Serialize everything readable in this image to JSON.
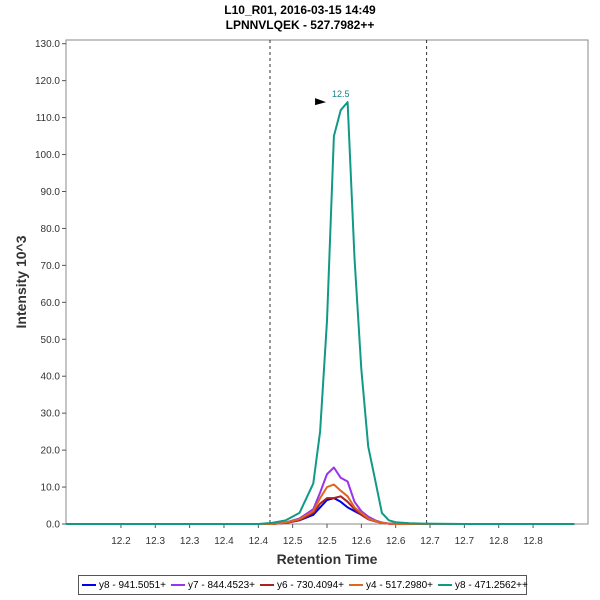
{
  "chart_data": {
    "type": "line",
    "title": "L10_R01, 2016-03-15 14:49",
    "subtitle": "LPNNVLQEK - 527.7982++",
    "xlabel": "Retention Time",
    "ylabel": "Intensity 10^3",
    "xlim": [
      12.12,
      12.88
    ],
    "ylim": [
      0,
      131
    ],
    "xticks": [
      "12.2",
      "12.3",
      "12.3",
      "12.4",
      "12.4",
      "12.5",
      "12.5",
      "12.6",
      "12.6",
      "12.7",
      "12.7",
      "12.8",
      "12.8"
    ],
    "xtick_values": [
      12.2,
      12.25,
      12.3,
      12.35,
      12.4,
      12.45,
      12.5,
      12.55,
      12.6,
      12.65,
      12.7,
      12.75,
      12.8
    ],
    "yticks": [
      "0.0",
      "10.0",
      "20.0",
      "30.0",
      "40.0",
      "50.0",
      "60.0",
      "70.0",
      "80.0",
      "90.0",
      "100.0",
      "110.0",
      "120.0",
      "130.0"
    ],
    "ytick_values": [
      0,
      10,
      20,
      30,
      40,
      50,
      60,
      70,
      80,
      90,
      100,
      110,
      120,
      130
    ],
    "boundaries": [
      12.417,
      12.645
    ],
    "peak_annotation": {
      "label": "12.5",
      "x": 12.503,
      "y": 114.2
    },
    "grid": false,
    "legend_position": "bottom",
    "x": [
      12.12,
      12.2,
      12.3,
      12.4,
      12.42,
      12.44,
      12.46,
      12.48,
      12.49,
      12.5,
      12.51,
      12.52,
      12.53,
      12.54,
      12.55,
      12.56,
      12.57,
      12.58,
      12.59,
      12.6,
      12.62,
      12.64,
      12.7,
      12.8,
      12.86
    ],
    "series": [
      {
        "name": "y8 - 941.5051+",
        "color": "#0000ee",
        "values": [
          0,
          0,
          0,
          0,
          0,
          0.3,
          1.0,
          2.5,
          4.5,
          6.5,
          7.0,
          6.0,
          4.5,
          3.5,
          2.5,
          1.3,
          0.8,
          0.3,
          0.1,
          0,
          0,
          0,
          0,
          0,
          0
        ]
      },
      {
        "name": "y7 - 844.4523+",
        "color": "#9933ee",
        "values": [
          0,
          0,
          0,
          0,
          0,
          0.4,
          1.5,
          4.0,
          8.5,
          13.5,
          15.3,
          12.5,
          11.5,
          6.0,
          3.5,
          2.0,
          1.0,
          0.4,
          0.1,
          0,
          0,
          0,
          0,
          0,
          0
        ]
      },
      {
        "name": "y6 - 730.4094+",
        "color": "#aa2222",
        "values": [
          0,
          0,
          0,
          0,
          0,
          0.3,
          1.0,
          3.0,
          5.5,
          7.0,
          7.0,
          7.5,
          6.0,
          4.0,
          2.5,
          1.3,
          0.7,
          0.3,
          0.1,
          0,
          0,
          0,
          0,
          0,
          0
        ]
      },
      {
        "name": "y4 - 517.2980+",
        "color": "#dd6622",
        "values": [
          0,
          0,
          0,
          0,
          0,
          0.4,
          1.3,
          3.5,
          7.0,
          10.0,
          10.7,
          9.0,
          7.5,
          4.5,
          3.0,
          1.5,
          0.8,
          0.3,
          0.1,
          0,
          0,
          0,
          0,
          0,
          0
        ]
      },
      {
        "name": "y8 - 471.2562++",
        "color": "#119988",
        "values": [
          0,
          0,
          0,
          0,
          0.3,
          1.0,
          3.0,
          11.0,
          25.0,
          55.0,
          105.0,
          112.0,
          114.2,
          72.0,
          42.0,
          21.0,
          12.0,
          3.0,
          1.0,
          0.5,
          0.2,
          0.1,
          0,
          0,
          0
        ]
      }
    ]
  }
}
